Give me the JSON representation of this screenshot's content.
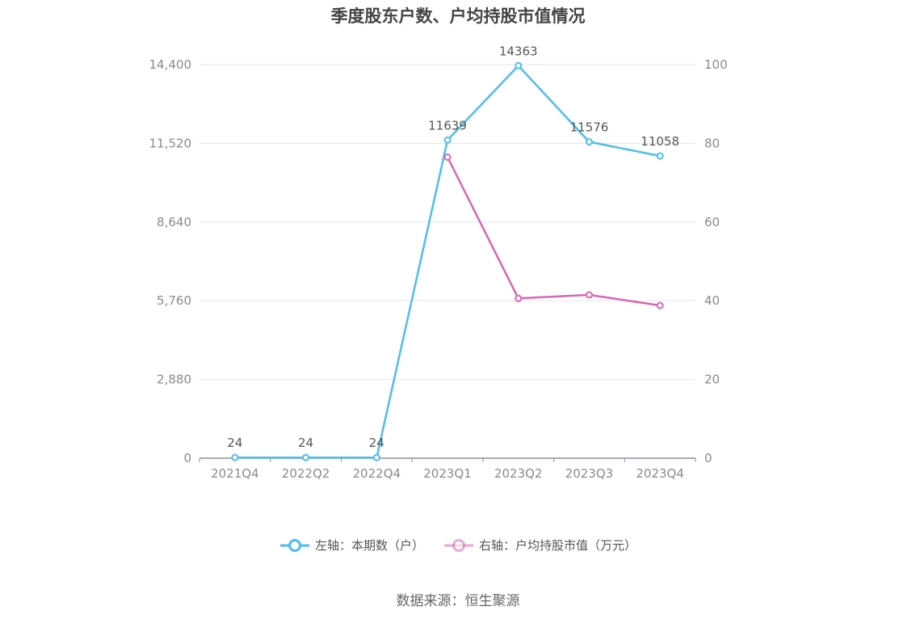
{
  "chart_data": {
    "type": "line",
    "title": "季度股东户数、户均持股市值情况",
    "categories": [
      "2021Q4",
      "2022Q2",
      "2022Q4",
      "2023Q1",
      "2023Q2",
      "2023Q3",
      "2023Q4"
    ],
    "series": [
      {
        "name": "左轴：本期数（户）",
        "axis": "left",
        "color": "#4dbdee",
        "values": [
          24,
          24,
          24,
          11639,
          14363,
          11576,
          11058
        ],
        "labels": [
          "24",
          "24",
          "24",
          "11639",
          "14363",
          "11576",
          "11058"
        ]
      },
      {
        "name": "右轴：户均持股市值（万元）",
        "axis": "right",
        "color": "#d966b3",
        "values": [
          null,
          null,
          null,
          76.5,
          40.6,
          41.5,
          38.8
        ]
      }
    ],
    "yleft": {
      "min": 0,
      "max": 14400,
      "ticks": [
        "0",
        "2,880",
        "5,760",
        "8,640",
        "11,520",
        "14,400"
      ]
    },
    "yright": {
      "min": 0,
      "max": 100,
      "ticks": [
        "0",
        "20",
        "40",
        "60",
        "80",
        "100"
      ]
    },
    "grid": true,
    "legend_position": "bottom"
  },
  "source_note": "数据来源：恒生聚源"
}
